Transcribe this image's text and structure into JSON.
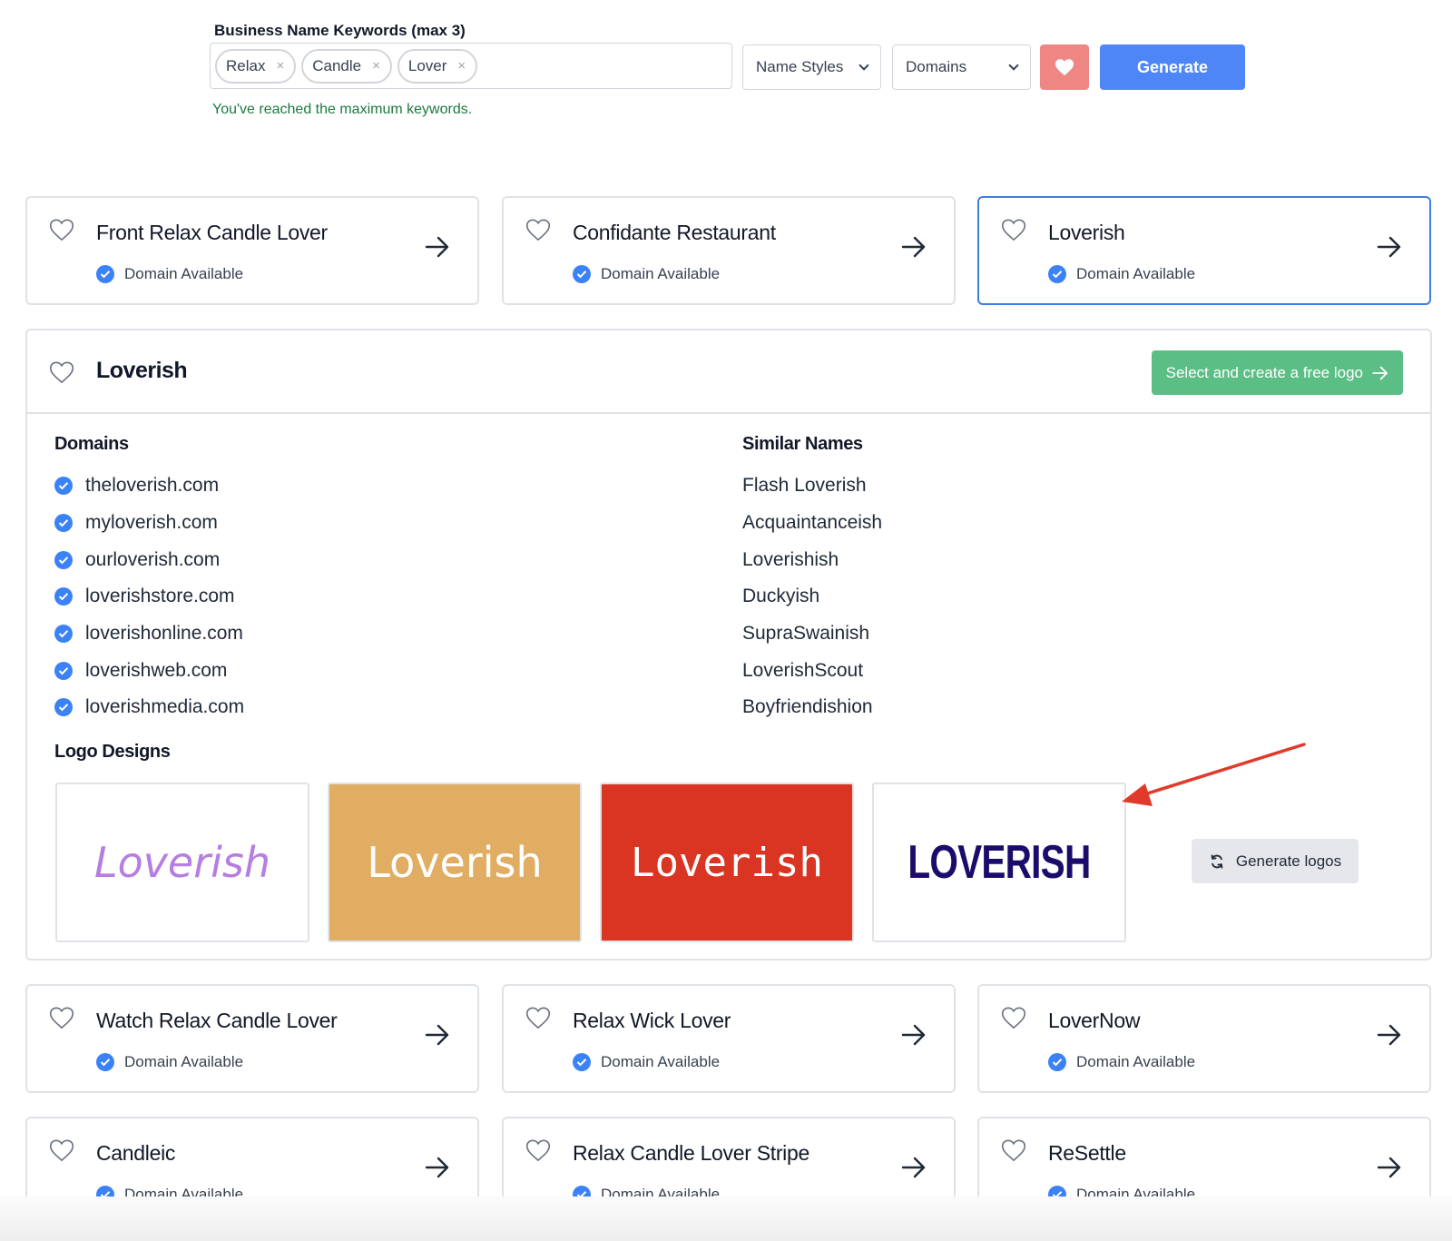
{
  "search": {
    "label": "Business Name Keywords (max 3)",
    "keywords": [
      "Relax",
      "Candle",
      "Lover"
    ],
    "remove_glyph": "×",
    "name_styles": "Name Styles",
    "domains": "Domains",
    "generate": "Generate",
    "max_message": "You've reached the maximum keywords."
  },
  "status_text": "Domain Available",
  "cards_top": [
    {
      "name": "Front Relax Candle Lover"
    },
    {
      "name": "Confidante Restaurant"
    },
    {
      "name": "Loverish"
    }
  ],
  "detail": {
    "title": "Loverish",
    "cta": "Select and create a free logo",
    "domains_heading": "Domains",
    "domains": [
      "theloverish.com",
      "myloverish.com",
      "ourloverish.com",
      "loverishstore.com",
      "loverishonline.com",
      "loverishweb.com",
      "loverishmedia.com"
    ],
    "similar_heading": "Similar Names",
    "similar": [
      "Flash Loverish",
      "Acquaintanceish",
      "Loverishish",
      "Duckyish",
      "SupraSwainish",
      "LoverishScout",
      "Boyfriendishion"
    ],
    "logos_heading": "Logo Designs",
    "logos": [
      "Loverish",
      "Loverish",
      "Loverish",
      "LOVERISH"
    ],
    "generate_logos": "Generate logos"
  },
  "cards_bottom": [
    {
      "name": "Watch Relax Candle Lover"
    },
    {
      "name": "Relax Wick Lover"
    },
    {
      "name": "LoverNow"
    },
    {
      "name": "Candleic"
    },
    {
      "name": "Relax Candle Lover Stripe"
    },
    {
      "name": "ReSettle"
    }
  ],
  "colors": {
    "accent_blue": "#4f86f7",
    "favorite_red": "#ee8783",
    "cta_green": "#5bbf85",
    "logo_purple": "#b57ee0",
    "logo_tan": "#e1ad62",
    "logo_red": "#da3523",
    "logo_navy": "#1c0b6b",
    "annotation_red": "#e03a2a"
  }
}
